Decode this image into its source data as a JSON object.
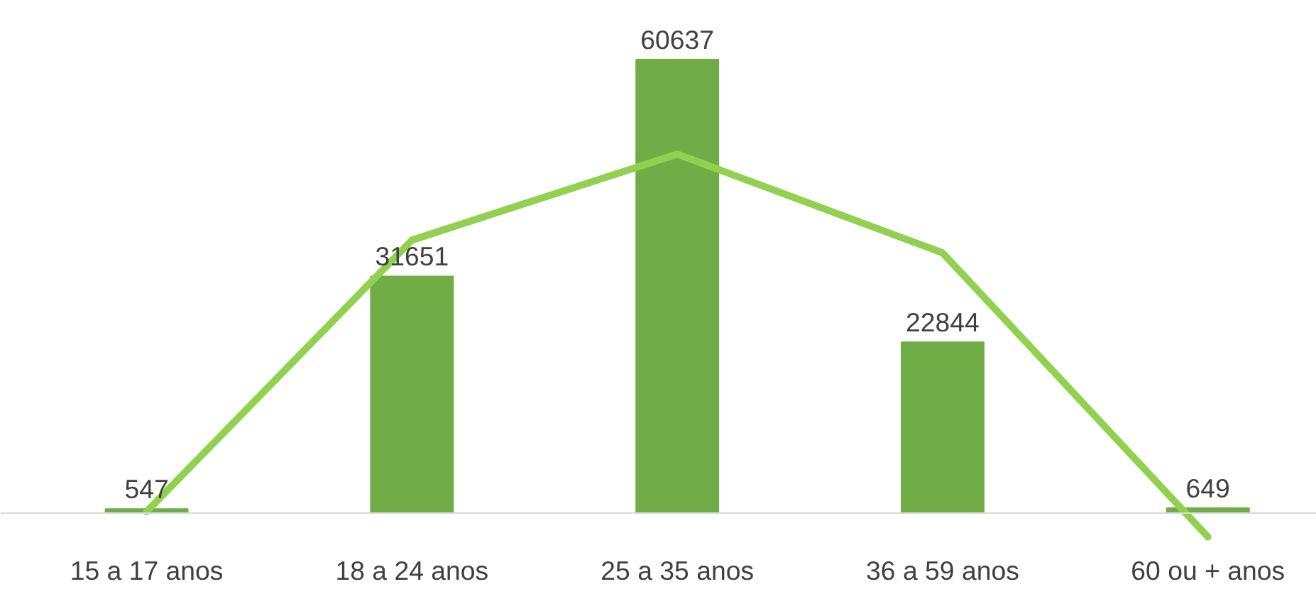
{
  "chart_data": {
    "type": "bar",
    "categories": [
      "15 a 17 anos",
      "18 a 24 anos",
      "25 a 35 anos",
      "36 a 59 anos",
      "60 ou + anos"
    ],
    "grid": false,
    "series": [
      {
        "color": "#70ad47",
        "values": [
          547,
          31651,
          60637,
          22844,
          649
        ],
        "value_labels": [
          "547",
          "31651",
          "60637",
          "22844",
          "649"
        ]
      },
      {
        "type": "line",
        "color": "#92d050",
        "values": [
          200,
          36500,
          48000,
          34800,
          -3200
        ]
      }
    ]
  }
}
